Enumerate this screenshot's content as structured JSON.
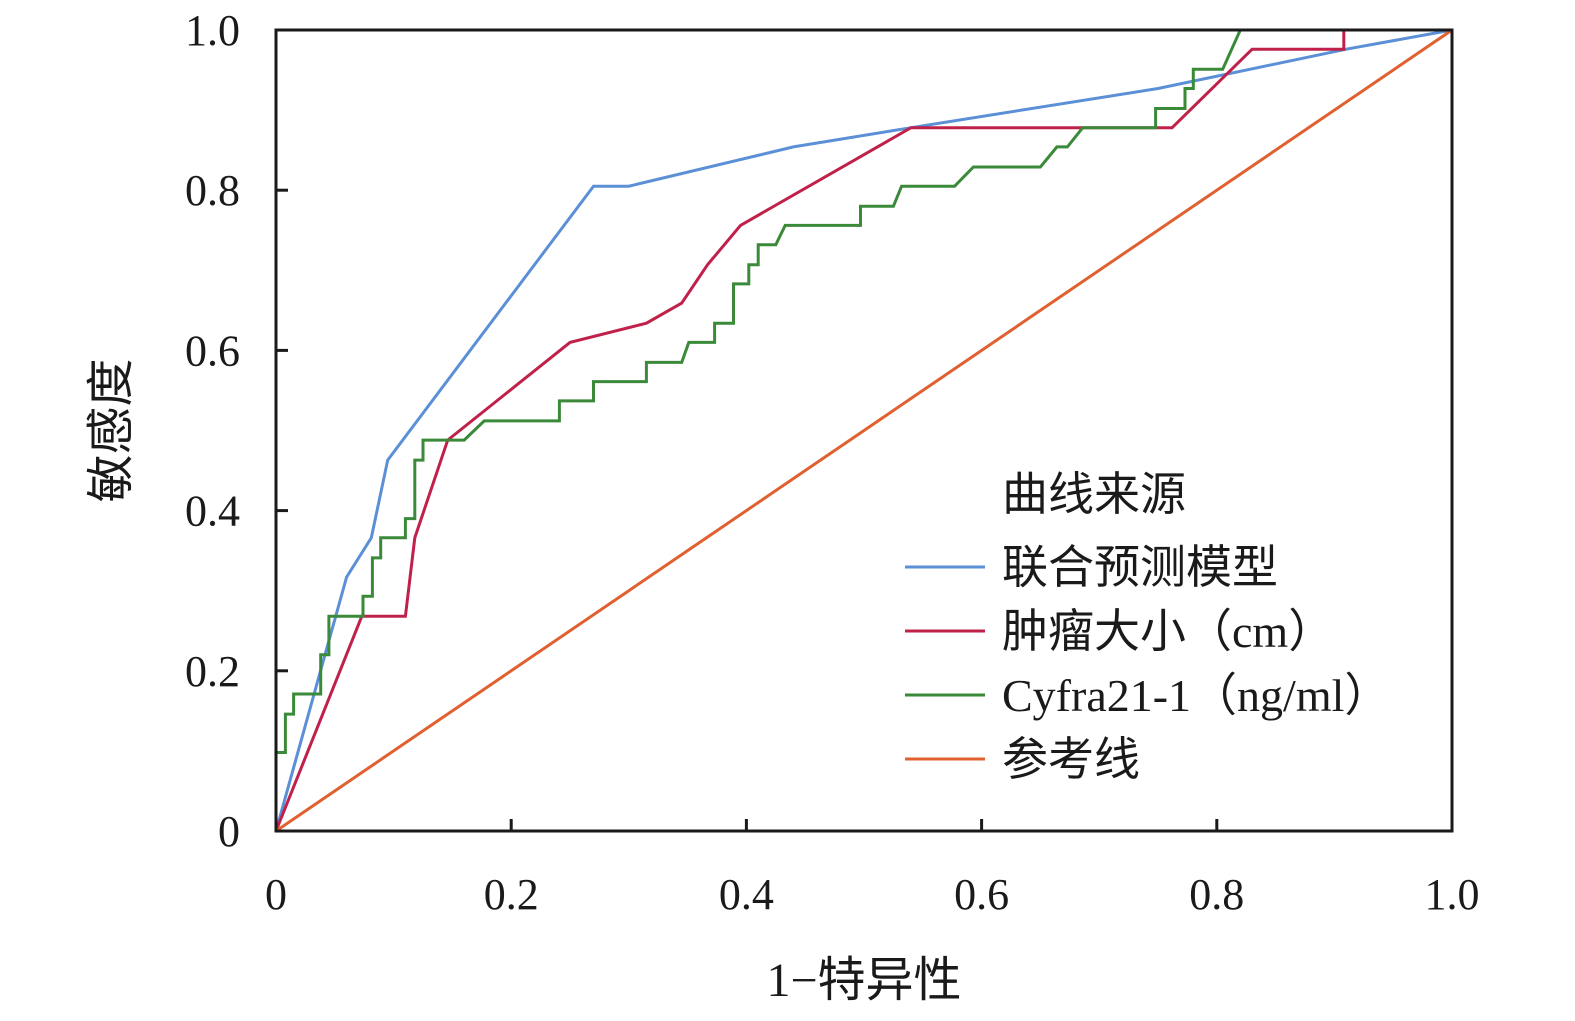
{
  "chart_data": {
    "type": "line",
    "title": "",
    "xlabel": "1−特异性",
    "ylabel": "敏感度",
    "xlim": [
      0,
      1
    ],
    "ylim": [
      0,
      1
    ],
    "x_ticks": [
      "0",
      "0.2",
      "0.4",
      "0.6",
      "0.8",
      "1.0"
    ],
    "y_ticks": [
      "0",
      "0.2",
      "0.4",
      "0.6",
      "0.8",
      "1.0"
    ],
    "grid": false,
    "legend_position": "bottom-right",
    "legend_title": "曲线来源",
    "series": [
      {
        "name": "联合预测模型",
        "color": "#5b8fd6",
        "step": false,
        "points": [
          [
            0,
            0
          ],
          [
            0.06,
            0.317
          ],
          [
            0.081,
            0.366
          ],
          [
            0.095,
            0.463
          ],
          [
            0.27,
            0.805
          ],
          [
            0.3,
            0.805
          ],
          [
            0.44,
            0.854
          ],
          [
            0.54,
            0.878
          ],
          [
            0.75,
            0.927
          ],
          [
            0.91,
            0.976
          ],
          [
            1,
            1
          ]
        ]
      },
      {
        "name": "肿瘤大小（cm）",
        "color": "#c0214a",
        "step": false,
        "points": [
          [
            0,
            0
          ],
          [
            0.073,
            0.268
          ],
          [
            0.11,
            0.268
          ],
          [
            0.118,
            0.366
          ],
          [
            0.146,
            0.488
          ],
          [
            0.25,
            0.61
          ],
          [
            0.315,
            0.634
          ],
          [
            0.345,
            0.659
          ],
          [
            0.367,
            0.707
          ],
          [
            0.395,
            0.756
          ],
          [
            0.54,
            0.878
          ],
          [
            0.762,
            0.878
          ],
          [
            0.83,
            0.976
          ],
          [
            0.908,
            0.976
          ],
          [
            0.908,
            1.0
          ],
          [
            1,
            1
          ]
        ]
      },
      {
        "name": "Cyfra21-1（ng/ml）",
        "color": "#3a8a3a",
        "step": true,
        "points": [
          [
            0,
            0
          ],
          [
            0,
            0.098
          ],
          [
            0.008,
            0.098
          ],
          [
            0.008,
            0.146
          ],
          [
            0.015,
            0.146
          ],
          [
            0.015,
            0.171
          ],
          [
            0.038,
            0.171
          ],
          [
            0.038,
            0.22
          ],
          [
            0.045,
            0.22
          ],
          [
            0.045,
            0.268
          ],
          [
            0.074,
            0.268
          ],
          [
            0.074,
            0.293
          ],
          [
            0.082,
            0.293
          ],
          [
            0.082,
            0.341
          ],
          [
            0.089,
            0.341
          ],
          [
            0.089,
            0.366
          ],
          [
            0.11,
            0.366
          ],
          [
            0.11,
            0.39
          ],
          [
            0.118,
            0.39
          ],
          [
            0.118,
            0.463
          ],
          [
            0.125,
            0.463
          ],
          [
            0.125,
            0.488
          ],
          [
            0.16,
            0.488
          ],
          [
            0.177,
            0.512
          ],
          [
            0.241,
            0.512
          ],
          [
            0.241,
            0.537
          ],
          [
            0.27,
            0.537
          ],
          [
            0.27,
            0.561
          ],
          [
            0.315,
            0.561
          ],
          [
            0.315,
            0.585
          ],
          [
            0.345,
            0.585
          ],
          [
            0.351,
            0.61
          ],
          [
            0.373,
            0.61
          ],
          [
            0.373,
            0.634
          ],
          [
            0.389,
            0.634
          ],
          [
            0.389,
            0.683
          ],
          [
            0.402,
            0.683
          ],
          [
            0.402,
            0.707
          ],
          [
            0.41,
            0.707
          ],
          [
            0.41,
            0.732
          ],
          [
            0.425,
            0.732
          ],
          [
            0.433,
            0.756
          ],
          [
            0.497,
            0.756
          ],
          [
            0.497,
            0.78
          ],
          [
            0.525,
            0.78
          ],
          [
            0.532,
            0.805
          ],
          [
            0.577,
            0.805
          ],
          [
            0.593,
            0.829
          ],
          [
            0.65,
            0.829
          ],
          [
            0.664,
            0.854
          ],
          [
            0.673,
            0.854
          ],
          [
            0.686,
            0.878
          ],
          [
            0.748,
            0.878
          ],
          [
            0.748,
            0.902
          ],
          [
            0.773,
            0.902
          ],
          [
            0.773,
            0.927
          ],
          [
            0.78,
            0.927
          ],
          [
            0.78,
            0.951
          ],
          [
            0.805,
            0.951
          ],
          [
            0.82,
            1.0
          ],
          [
            1,
            1
          ]
        ]
      },
      {
        "name": "参考线",
        "color": "#e06030",
        "step": false,
        "points": [
          [
            0,
            0
          ],
          [
            1,
            1
          ]
        ]
      }
    ]
  }
}
